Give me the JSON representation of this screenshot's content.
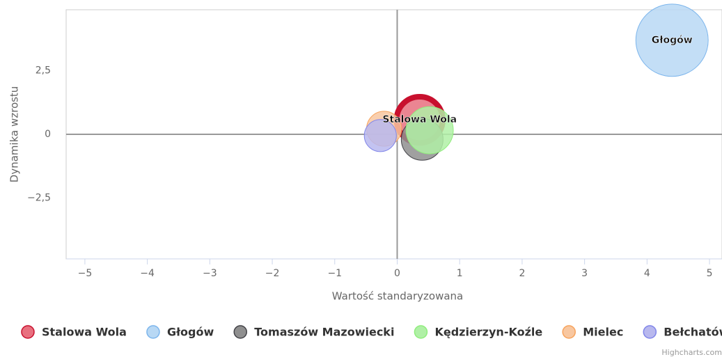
{
  "chart_data": {
    "type": "bubble",
    "x_label": "Wartość standaryzowana",
    "y_label": "Dynamika wzrostu",
    "credits": "Highcharts.com",
    "xlim": [
      -5.3,
      5.2
    ],
    "xticks": [
      {
        "value": -5,
        "label": "−5"
      },
      {
        "value": -4,
        "label": "−4"
      },
      {
        "value": -3,
        "label": "−3"
      },
      {
        "value": -2,
        "label": "−2"
      },
      {
        "value": -1,
        "label": "−1"
      },
      0,
      1,
      2,
      3,
      4,
      5
    ],
    "ylim": [
      -4.9,
      4.9
    ],
    "yticks": [
      {
        "value": -2.5,
        "label": "−2,5"
      },
      0,
      {
        "value": 2.5,
        "label": "2,5"
      }
    ],
    "zero_lines": true,
    "legend": "bottom",
    "series": [
      {
        "name": "Stalowa Wola",
        "color": "#e8707f",
        "stroke": "#c8102e",
        "x": 0.36,
        "y": 0.57,
        "z": 11,
        "show_label": true,
        "selected": true
      },
      {
        "name": "Głogów",
        "color": "#b8d8f4",
        "stroke": "#7cb5ec",
        "x": 4.4,
        "y": 3.7,
        "z": 27,
        "show_label": true
      },
      {
        "name": "Tomaszów Mazowiecki",
        "color": "#8f8f8f",
        "stroke": "#434348",
        "x": 0.4,
        "y": -0.2,
        "z": 9
      },
      {
        "name": "Kędzierzyn-Koźle",
        "color": "#b0f0a6",
        "stroke": "#90ed7d",
        "x": 0.52,
        "y": 0.16,
        "z": 11.5
      },
      {
        "name": "Mielec",
        "color": "#f8c7a0",
        "stroke": "#f7a35c",
        "x": -0.21,
        "y": 0.22,
        "z": 6.3
      },
      {
        "name": "Bełchatów",
        "color": "#b8b8ee",
        "stroke": "#8085e9",
        "x": -0.27,
        "y": -0.05,
        "z": 5.3
      }
    ]
  }
}
